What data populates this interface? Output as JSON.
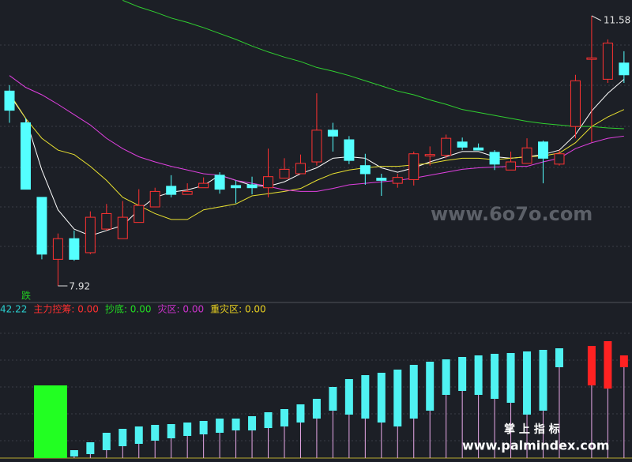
{
  "chart_data": {
    "type": "candlestick",
    "candles": {
      "open": [
        10.56,
        10.13,
        9.12,
        8.28,
        8.56,
        8.37,
        8.69,
        8.56,
        8.78,
        8.99,
        9.27,
        9.16,
        9.25,
        9.42,
        9.28,
        9.29,
        9.25,
        9.38,
        9.44,
        9.6,
        10.03,
        9.9,
        9.55,
        9.38,
        9.31,
        9.36,
        9.68,
        9.69,
        9.87,
        9.79,
        9.73,
        9.49,
        9.58,
        9.87,
        9.57,
        10.08,
        10.99,
        10.72,
        10.94
      ],
      "close": [
        10.3,
        9.23,
        8.35,
        8.56,
        8.28,
        8.85,
        8.9,
        8.85,
        9.01,
        9.2,
        9.16,
        9.2,
        9.31,
        9.23,
        9.25,
        9.25,
        9.4,
        9.5,
        9.58,
        10.03,
        9.95,
        9.62,
        9.44,
        9.35,
        9.39,
        9.71,
        9.7,
        9.92,
        9.8,
        9.76,
        9.57,
        9.6,
        9.79,
        9.65,
        9.71,
        10.7,
        11.01,
        11.21,
        10.78
      ],
      "high": [
        10.64,
        10.19,
        9.12,
        8.63,
        8.67,
        8.93,
        9.03,
        9.07,
        9.23,
        9.25,
        9.42,
        9.31,
        9.39,
        9.46,
        9.35,
        9.4,
        9.78,
        9.65,
        9.7,
        10.53,
        10.13,
        9.95,
        9.71,
        9.44,
        9.44,
        9.74,
        9.81,
        9.97,
        9.93,
        9.85,
        9.76,
        9.74,
        9.92,
        9.89,
        9.76,
        10.78,
        11.58,
        11.26,
        11.1
      ],
      "low": [
        10.13,
        9.23,
        8.28,
        7.92,
        8.26,
        8.35,
        8.67,
        8.56,
        8.78,
        8.99,
        9.12,
        9.16,
        9.25,
        9.17,
        9.04,
        9.16,
        9.12,
        9.38,
        9.44,
        9.55,
        9.74,
        9.57,
        9.29,
        9.14,
        9.25,
        9.28,
        9.55,
        9.65,
        9.76,
        9.76,
        9.49,
        9.49,
        9.58,
        9.31,
        9.55,
        9.92,
        9.87,
        10.67,
        10.67
      ],
      "up_color": "#ff3232",
      "down_color": "#54ffff"
    },
    "high_label": "11.58",
    "low_label": "7.92",
    "series": [
      {
        "color": "#ffffff",
        "values": [
          10.51,
          10.19,
          9.49,
          8.95,
          8.69,
          8.6,
          8.67,
          8.74,
          8.95,
          9.12,
          9.19,
          9.22,
          9.28,
          9.42,
          9.35,
          9.28,
          9.27,
          9.33,
          9.44,
          9.52,
          9.65,
          9.67,
          9.65,
          9.52,
          9.46,
          9.52,
          9.6,
          9.67,
          9.74,
          9.74,
          9.67,
          9.65,
          9.67,
          9.7,
          9.76,
          9.97,
          10.29,
          10.53,
          10.72
        ]
      },
      {
        "color": "#e8e030",
        "values": [
          10.53,
          10.19,
          9.92,
          9.76,
          9.7,
          9.54,
          9.35,
          9.12,
          9.01,
          8.9,
          8.82,
          8.82,
          8.95,
          8.99,
          9.03,
          9.14,
          9.17,
          9.2,
          9.24,
          9.35,
          9.44,
          9.49,
          9.52,
          9.54,
          9.54,
          9.56,
          9.58,
          9.62,
          9.65,
          9.65,
          9.63,
          9.65,
          9.67,
          9.68,
          9.72,
          9.86,
          10.08,
          10.21,
          10.31
        ]
      },
      {
        "color": "#e040e0",
        "values": [
          10.77,
          10.61,
          10.51,
          10.38,
          10.24,
          10.1,
          9.92,
          9.78,
          9.67,
          9.6,
          9.54,
          9.49,
          9.44,
          9.42,
          9.35,
          9.31,
          9.27,
          9.22,
          9.2,
          9.2,
          9.24,
          9.29,
          9.31,
          9.33,
          9.35,
          9.38,
          9.42,
          9.46,
          9.5,
          9.52,
          9.53,
          9.54,
          9.54,
          9.6,
          9.65,
          9.78,
          9.86,
          9.92,
          9.95
        ]
      },
      {
        "color": "#30d030",
        "values": [
          null,
          null,
          null,
          null,
          null,
          null,
          null,
          11.79,
          11.7,
          11.63,
          11.55,
          11.49,
          11.42,
          11.34,
          11.26,
          11.17,
          11.09,
          11.02,
          10.96,
          10.88,
          10.83,
          10.77,
          10.7,
          10.63,
          10.56,
          10.51,
          10.44,
          10.38,
          10.31,
          10.27,
          10.23,
          10.19,
          10.15,
          10.12,
          10.1,
          10.08,
          10.08,
          10.06,
          10.05
        ]
      }
    ],
    "indicator": {
      "legend": [
        {
          "text": "42.22",
          "color": "#2ad0d0"
        },
        {
          "text": "主力控筹: 0.00",
          "color": "#ff3030"
        },
        {
          "text": "抄底: 0.00",
          "color": "#22dd22"
        },
        {
          "text": "灾区: 0.00",
          "color": "#cc33cc"
        },
        {
          "text": "重灾区: 0.00",
          "color": "#e8d020"
        }
      ],
      "bars": [
        {
          "color": "#4ff2f2",
          "upper": [
            null,
            null,
            null,
            null,
            10,
            20,
            32,
            37,
            40,
            42,
            43,
            45,
            47,
            50,
            50,
            53,
            58,
            62,
            68,
            75,
            90,
            100,
            105,
            108,
            112,
            118,
            122,
            125,
            128,
            130,
            132,
            133,
            135,
            137,
            139,
            null,
            null,
            null,
            null
          ],
          "lower": [
            null,
            null,
            null,
            null,
            2,
            5,
            10,
            15,
            18,
            22,
            25,
            28,
            30,
            32,
            35,
            35,
            38,
            40,
            45,
            50,
            60,
            55,
            50,
            45,
            40,
            50,
            60,
            80,
            85,
            80,
            75,
            70,
            55,
            60,
            115,
            null,
            null,
            null,
            null
          ]
        },
        {
          "color": "#ff2222",
          "upper": [
            null,
            null,
            null,
            null,
            null,
            null,
            null,
            null,
            null,
            null,
            null,
            null,
            null,
            null,
            null,
            null,
            null,
            null,
            null,
            null,
            null,
            null,
            null,
            null,
            null,
            null,
            null,
            null,
            null,
            null,
            null,
            null,
            null,
            null,
            null,
            null,
            142,
            148,
            130
          ],
          "lower": [
            null,
            null,
            null,
            null,
            null,
            null,
            null,
            null,
            null,
            null,
            null,
            null,
            null,
            null,
            null,
            null,
            null,
            null,
            null,
            null,
            null,
            null,
            null,
            null,
            null,
            null,
            null,
            null,
            null,
            null,
            null,
            null,
            null,
            null,
            null,
            null,
            92,
            88,
            115
          ]
        }
      ],
      "bottom_signal": {
        "color": "#22ff22",
        "value": 92
      },
      "signal_text": "跌"
    },
    "watermarks": [
      "www.6o7o.com",
      "掌 上 指 标",
      "www.palmindex.com"
    ]
  }
}
